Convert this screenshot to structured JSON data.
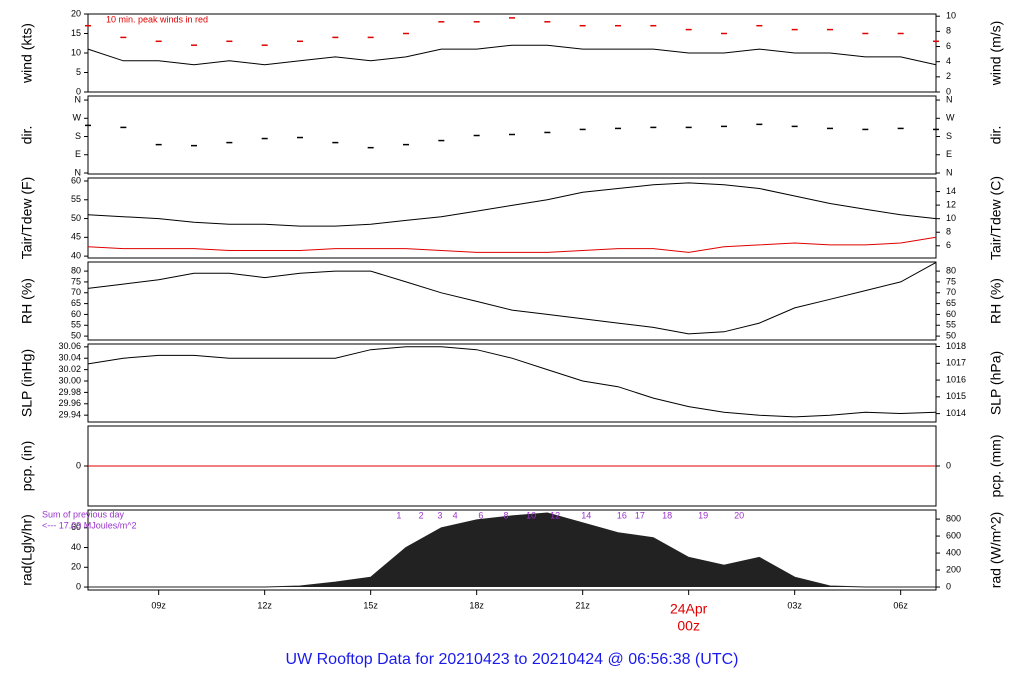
{
  "title": "UW Rooftop Data for 20210423  to  20210424 @ 06:56:38  (UTC)",
  "date_label": "24Apr",
  "chart_data": [
    {
      "type": "line",
      "ylabel": "wind (kts)",
      "y2label": "wind (m/s)",
      "annotation": "10 min. peak winds in red",
      "xlim": [
        7,
        31
      ],
      "ylim": [
        0,
        20
      ],
      "yticks": [
        0,
        5,
        10,
        15,
        20
      ],
      "y2lim": [
        0,
        10.29
      ],
      "y2ticks": [
        0,
        2,
        4,
        6,
        8,
        10
      ],
      "x": [
        7,
        8,
        9,
        10,
        11,
        12,
        13,
        14,
        15,
        16,
        17,
        18,
        19,
        20,
        21,
        22,
        23,
        24,
        25,
        26,
        27,
        28,
        29,
        30,
        31
      ],
      "series": [
        {
          "color": "#000000",
          "values": [
            11,
            8,
            8,
            7,
            8,
            7,
            8,
            9,
            8,
            9,
            11,
            11,
            12,
            12,
            11,
            11,
            11,
            10,
            10,
            11,
            10,
            10,
            9,
            9,
            7
          ]
        },
        {
          "type": "scatter",
          "color": "#e00000",
          "values": [
            17,
            14,
            13,
            12,
            13,
            12,
            13,
            14,
            14,
            15,
            18,
            18,
            19,
            18,
            17,
            17,
            17,
            16,
            15,
            17,
            16,
            16,
            15,
            15,
            13
          ]
        }
      ]
    },
    {
      "type": "scatter",
      "ylabel": "dir.",
      "y2label": "dir.",
      "xlim": [
        7,
        31
      ],
      "ylim": [
        -5,
        380
      ],
      "yticks": [
        {
          "value": 0,
          "label": "N"
        },
        {
          "value": 90,
          "label": "E"
        },
        {
          "value": 180,
          "label": "S"
        },
        {
          "value": 270,
          "label": "W"
        },
        {
          "value": 360,
          "label": "N"
        }
      ],
      "y2lim": [
        -5,
        380
      ],
      "y2ticks": [
        {
          "value": 0,
          "label": "N"
        },
        {
          "value": 90,
          "label": "E"
        },
        {
          "value": 180,
          "label": "S"
        },
        {
          "value": 270,
          "label": "W"
        },
        {
          "value": 360,
          "label": "N"
        }
      ],
      "x": [
        7,
        8,
        9,
        10,
        11,
        12,
        13,
        14,
        15,
        16,
        17,
        18,
        19,
        20,
        21,
        22,
        23,
        24,
        25,
        26,
        27,
        28,
        29,
        30,
        31
      ],
      "series": [
        {
          "color": "#000000",
          "values": [
            235,
            225,
            140,
            135,
            150,
            170,
            175,
            150,
            125,
            140,
            160,
            185,
            190,
            200,
            215,
            220,
            225,
            225,
            230,
            240,
            230,
            220,
            215,
            220,
            215
          ]
        }
      ]
    },
    {
      "type": "line",
      "ylabel": "Tair/Tdew (F)",
      "y2label": "Tair/Tdew (C)",
      "xlim": [
        7,
        31
      ],
      "ylim": [
        39.5,
        60.8
      ],
      "yticks": [
        40,
        45,
        50,
        55,
        60
      ],
      "y2lim": [
        4.2,
        16
      ],
      "y2ticks": [
        6,
        8,
        10,
        12,
        14
      ],
      "x": [
        7,
        8,
        9,
        10,
        11,
        12,
        13,
        14,
        15,
        16,
        17,
        18,
        19,
        20,
        21,
        22,
        23,
        24,
        25,
        26,
        27,
        28,
        29,
        30,
        31
      ],
      "series": [
        {
          "color": "#000000",
          "values": [
            51,
            50.5,
            50,
            49,
            48.5,
            48.5,
            48,
            48,
            48.5,
            49.5,
            50.5,
            52,
            53.5,
            55,
            57,
            58,
            59,
            59.5,
            59,
            58,
            56,
            54,
            52.5,
            51,
            50
          ]
        },
        {
          "color": "#e00000",
          "values": [
            42.5,
            42,
            42,
            42,
            41.5,
            41.5,
            41.5,
            42,
            42,
            42,
            41.5,
            41,
            41,
            41,
            41.5,
            42,
            42,
            41,
            42.5,
            43,
            43.5,
            43,
            43,
            43.5,
            45
          ]
        }
      ]
    },
    {
      "type": "line",
      "ylabel": "RH (%)",
      "y2label": "RH (%)",
      "xlim": [
        7,
        31
      ],
      "ylim": [
        48.2,
        84.2
      ],
      "yticks": [
        50,
        55,
        60,
        65,
        70,
        75,
        80
      ],
      "y2lim": [
        48.2,
        84.2
      ],
      "y2ticks": [
        50,
        55,
        60,
        65,
        70,
        75,
        80
      ],
      "x": [
        7,
        8,
        9,
        10,
        11,
        12,
        13,
        14,
        15,
        16,
        17,
        18,
        19,
        20,
        21,
        22,
        23,
        24,
        25,
        26,
        27,
        28,
        29,
        30,
        31
      ],
      "series": [
        {
          "color": "#000000",
          "values": [
            72,
            74,
            76,
            79,
            79,
            77,
            79,
            80,
            80,
            75,
            70,
            66,
            62,
            60,
            58,
            56,
            54,
            51,
            52,
            56,
            63,
            67,
            71,
            75,
            84
          ]
        }
      ]
    },
    {
      "type": "line",
      "ylabel": "SLP (inHg)",
      "y2label": "SLP (hPa)",
      "xlim": [
        7,
        31
      ],
      "ylim": [
        29.928,
        30.065
      ],
      "yticks": [
        {
          "value": 29.94,
          "label": "29.94"
        },
        {
          "value": 29.96,
          "label": "29.96"
        },
        {
          "value": 29.98,
          "label": "29.98"
        },
        {
          "value": 30.0,
          "label": "30.00"
        },
        {
          "value": 30.02,
          "label": "30.02"
        },
        {
          "value": 30.04,
          "label": "30.04"
        },
        {
          "value": 30.06,
          "label": "30.06"
        }
      ],
      "y2lim": [
        1013.5,
        1018.15
      ],
      "y2ticks": [
        1014,
        1015,
        1016,
        1017,
        1018
      ],
      "x": [
        7,
        8,
        9,
        10,
        11,
        12,
        13,
        14,
        15,
        16,
        17,
        18,
        19,
        20,
        21,
        22,
        23,
        24,
        25,
        26,
        27,
        28,
        29,
        30,
        31
      ],
      "series": [
        {
          "color": "#000000",
          "values": [
            30.03,
            30.04,
            30.045,
            30.045,
            30.04,
            30.04,
            30.04,
            30.04,
            30.055,
            30.06,
            30.06,
            30.055,
            30.04,
            30.02,
            30.0,
            29.99,
            29.97,
            29.955,
            29.945,
            29.94,
            29.937,
            29.94,
            29.945,
            29.943,
            29.945
          ]
        }
      ]
    },
    {
      "type": "line",
      "ylabel": "pcp. (in)",
      "y2label": "pcp. (mm)",
      "xlim": [
        7,
        31
      ],
      "ylim": [
        -1,
        1
      ],
      "yticks": [
        0
      ],
      "y2lim": [
        -1,
        1
      ],
      "y2ticks": [
        0
      ],
      "x": [
        7,
        8,
        9,
        10,
        11,
        12,
        13,
        14,
        15,
        16,
        17,
        18,
        19,
        20,
        21,
        22,
        23,
        24,
        25,
        26,
        27,
        28,
        29,
        30,
        31
      ],
      "series": [
        {
          "color": "#e00000",
          "values": [
            0,
            0,
            0,
            0,
            0,
            0,
            0,
            0,
            0,
            0,
            0,
            0,
            0,
            0,
            0,
            0,
            0,
            0,
            0,
            0,
            0,
            0,
            0,
            0,
            0
          ]
        }
      ]
    },
    {
      "type": "area",
      "ylabel": "rad(Lgly/hr)",
      "y2label": "rad (W/m^2)",
      "annotations": [
        "Sum of previous day",
        "<--- 17.09 MJoules/m^2"
      ],
      "annotation_color": "#9933cc",
      "hour_marks": {
        "x": [
          15.8,
          16.43,
          16.96,
          17.39,
          18.12,
          18.83,
          19.54,
          20.22,
          21.1,
          22.11,
          22.62,
          23.39,
          24.41,
          25.43
        ],
        "labels": [
          "1",
          "2",
          "3",
          "4",
          "6",
          "8",
          "10",
          "12",
          "14",
          "16",
          "17",
          "18",
          "19",
          "20"
        ]
      },
      "xlim": [
        7,
        31
      ],
      "ylim": [
        -3,
        78
      ],
      "yticks": [
        0,
        20,
        40,
        60
      ],
      "y2lim": [
        -35,
        907
      ],
      "y2ticks": [
        0,
        200,
        400,
        600,
        800
      ],
      "xticks": [
        {
          "value": 9,
          "label": "09z"
        },
        {
          "value": 12,
          "label": "12z"
        },
        {
          "value": 15,
          "label": "15z"
        },
        {
          "value": 18,
          "label": "18z"
        },
        {
          "value": 21,
          "label": "21z"
        },
        {
          "value": 24,
          "label": "00z",
          "color": "#e00000"
        },
        {
          "value": 27,
          "label": "03z"
        },
        {
          "value": 30,
          "label": "06z"
        }
      ],
      "x": [
        7,
        8,
        9,
        10,
        11,
        12,
        13,
        14,
        15,
        16,
        17,
        18,
        19,
        20,
        21,
        22,
        23,
        24,
        25,
        26,
        27,
        28,
        29,
        30,
        31
      ],
      "series": [
        {
          "color": "#222222",
          "values": [
            0,
            0,
            0,
            0,
            0,
            0,
            1,
            5,
            10,
            40,
            60,
            68,
            72,
            75,
            65,
            55,
            50,
            30,
            22,
            30,
            10,
            1,
            0,
            0,
            0
          ]
        }
      ]
    }
  ]
}
